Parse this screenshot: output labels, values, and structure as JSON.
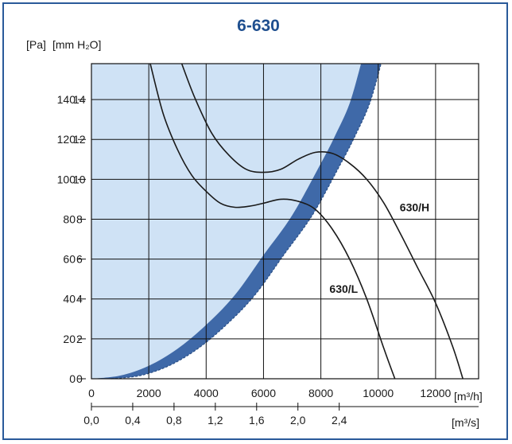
{
  "chart_data": {
    "type": "line",
    "title": "6-630",
    "y_label_pa": "[Pa]",
    "y_label_mm": "[mm H₂O]",
    "x_label_m3h": "[m³/h]",
    "x_label_m3s": "[m³/s]",
    "xlim": [
      0,
      13500
    ],
    "ylim": [
      0,
      158
    ],
    "pa_ticks": [
      0,
      20,
      40,
      60,
      80,
      100,
      120,
      140
    ],
    "mm_ticks": [
      "0",
      "2",
      "4",
      "6",
      "8",
      "10",
      "12",
      "14"
    ],
    "m3h_ticks": [
      "0",
      "2000",
      "4000",
      "6000",
      "8000",
      "10000",
      "12000"
    ],
    "m3h_tick_values": [
      0,
      2000,
      4000,
      6000,
      8000,
      10000,
      12000
    ],
    "m3s_ticks": [
      "0,0",
      "0,4",
      "0,8",
      "1,2",
      "1,6",
      "2,0",
      "2,4"
    ],
    "m3s_tick_values": [
      0,
      0.4,
      0.8,
      1.2,
      1.6,
      2.0,
      2.4
    ],
    "grid": true,
    "colors": {
      "region_fill": "#cfe2f5",
      "band_fill": "#3f69a8",
      "frame": "#2a5a9a",
      "title": "#1f4f8f"
    },
    "series": [
      {
        "name": "630/H",
        "x": [
          3150,
          3600,
          4200,
          4800,
          5400,
          6000,
          6600,
          7200,
          7800,
          8400,
          9000,
          9600,
          10200,
          10800,
          11400,
          12000,
          12600,
          12950
        ],
        "y": [
          158,
          141,
          123,
          112,
          105,
          103.5,
          105,
          110,
          113.5,
          113,
          108,
          100,
          88,
          72,
          55,
          38,
          16,
          0
        ]
      },
      {
        "name": "630/L",
        "x": [
          2050,
          2500,
          3000,
          3500,
          4000,
          4500,
          5000,
          5500,
          6000,
          6600,
          7200,
          7800,
          8400,
          9000,
          9600,
          10200,
          10580
        ],
        "y": [
          158,
          133,
          115,
          102,
          94,
          88,
          86,
          86.5,
          88,
          90,
          89,
          85,
          75,
          60,
          40,
          15,
          0
        ]
      }
    ],
    "shaded_region": {
      "x": [
        0,
        1000,
        2000,
        3000,
        4000,
        5000,
        6000,
        7000,
        8000,
        8500,
        9000,
        9400
      ],
      "y": [
        0,
        1.6,
        6.5,
        15,
        27,
        42,
        62,
        82,
        108,
        122,
        138,
        158
      ]
    },
    "band_width_m3h": 700,
    "curve_labels": [
      {
        "text": "630/H",
        "x": 10750,
        "y": 84
      },
      {
        "text": "630/L",
        "x": 8300,
        "y": 43
      }
    ]
  }
}
